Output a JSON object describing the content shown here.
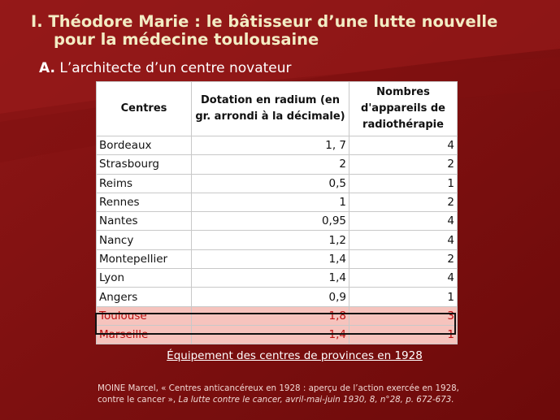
{
  "slide": {
    "title_line1": "I. Théodore Marie : le bâtisseur d’une lutte nouvelle",
    "title_line2": "pour la médecine toulousaine",
    "subtitle_prefix": "A.",
    "subtitle_text": "L’architecte d’un centre novateur",
    "caption": "Équipement des centres de provinces en 1928",
    "source_line1": "MOINE Marcel, « Centres anticancéreux en 1928 : aperçu de l’action exercée en 1928,",
    "source_line2_plain": "contre le cancer », ",
    "source_line2_italic": "La lutte contre le cancer, avril-mai-juin 1930, 8, n°28, p. 672-673.",
    "colors": {
      "background": "#7a0d0d",
      "title": "#f3ecc4",
      "highlight_row": "#f6c3bd"
    }
  },
  "table": {
    "headers": [
      "Centres",
      "Dotation en radium (en gr. arrondi à la décimale)",
      "Nombres d'appareils de radiothérapie"
    ],
    "rows": [
      [
        "Bordeaux",
        "1, 7",
        "4"
      ],
      [
        "Strasbourg",
        "2",
        "2"
      ],
      [
        "Reims",
        "0,5",
        "1"
      ],
      [
        "Rennes",
        "1",
        "2"
      ],
      [
        "Nantes",
        "0,95",
        "4"
      ],
      [
        "Nancy",
        "1,2",
        "4"
      ],
      [
        "Montepellier",
        "1,4",
        "2"
      ],
      [
        "Lyon",
        "1,4",
        "4"
      ],
      [
        "Angers",
        "0,9",
        "1"
      ],
      [
        "Toulouse",
        "1,8",
        "3"
      ],
      [
        "Marseille",
        "1,4",
        "1"
      ]
    ]
  }
}
